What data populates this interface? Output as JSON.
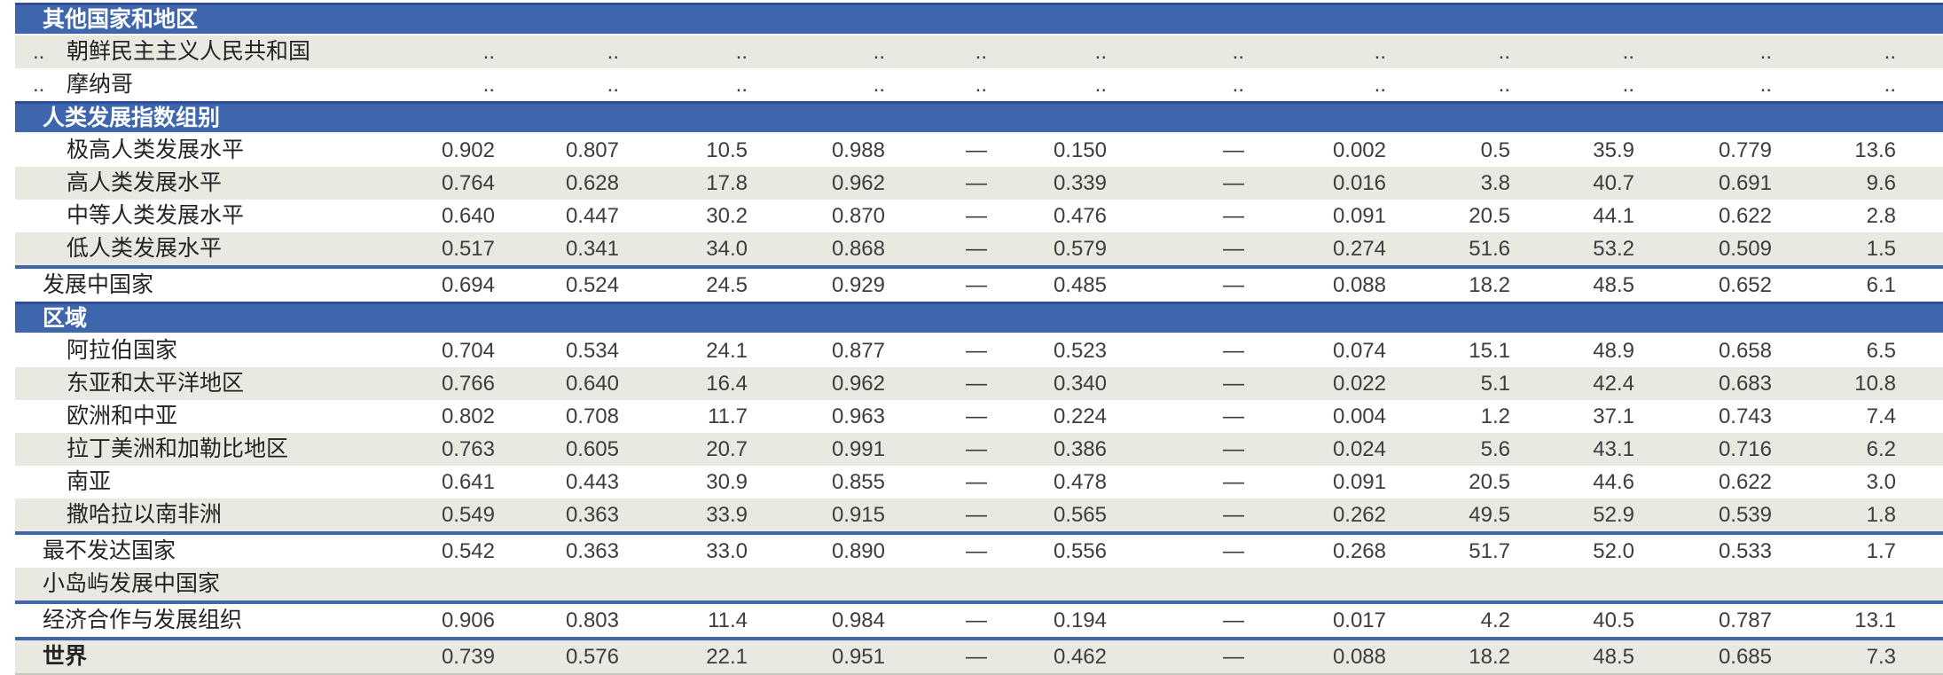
{
  "table": {
    "rows": [
      {
        "type": "band",
        "label": "其他国家和地区"
      },
      {
        "type": "data",
        "indent": "member",
        "shaded": true,
        "rank": "..",
        "label": "朝鲜民主主义人民共和国",
        "values": [
          "..",
          "..",
          "..",
          "..",
          "..",
          "..",
          "..",
          "..",
          "..",
          "..",
          "..",
          ".."
        ]
      },
      {
        "type": "data",
        "indent": "member",
        "shaded": false,
        "rank": "..",
        "label": "摩纳哥",
        "values": [
          "..",
          "..",
          "..",
          "..",
          "..",
          "..",
          "..",
          "..",
          "..",
          "..",
          "..",
          ".."
        ]
      },
      {
        "type": "band",
        "label": "人类发展指数组别"
      },
      {
        "type": "data",
        "indent": "member",
        "shaded": false,
        "label": "极高人类发展水平",
        "values": [
          "0.902",
          "0.807",
          "10.5",
          "0.988",
          "—",
          "0.150",
          "—",
          "0.002",
          "0.5",
          "35.9",
          "0.779",
          "13.6"
        ]
      },
      {
        "type": "data",
        "indent": "member",
        "shaded": true,
        "label": "高人类发展水平",
        "values": [
          "0.764",
          "0.628",
          "17.8",
          "0.962",
          "—",
          "0.339",
          "—",
          "0.016",
          "3.8",
          "40.7",
          "0.691",
          "9.6"
        ]
      },
      {
        "type": "data",
        "indent": "member",
        "shaded": false,
        "label": "中等人类发展水平",
        "values": [
          "0.640",
          "0.447",
          "30.2",
          "0.870",
          "—",
          "0.476",
          "—",
          "0.091",
          "20.5",
          "44.1",
          "0.622",
          "2.8"
        ]
      },
      {
        "type": "data",
        "indent": "member",
        "shaded": true,
        "label": "低人类发展水平",
        "values": [
          "0.517",
          "0.341",
          "34.0",
          "0.868",
          "—",
          "0.579",
          "—",
          "0.274",
          "51.6",
          "53.2",
          "0.509",
          "1.5"
        ]
      },
      {
        "type": "data",
        "indent": "aggregate",
        "shaded": false,
        "rule_above": true,
        "label": "发展中国家",
        "values": [
          "0.694",
          "0.524",
          "24.5",
          "0.929",
          "—",
          "0.485",
          "—",
          "0.088",
          "18.2",
          "48.5",
          "0.652",
          "6.1"
        ]
      },
      {
        "type": "band",
        "label": "区域"
      },
      {
        "type": "data",
        "indent": "member",
        "shaded": false,
        "label": "阿拉伯国家",
        "values": [
          "0.704",
          "0.534",
          "24.1",
          "0.877",
          "—",
          "0.523",
          "—",
          "0.074",
          "15.1",
          "48.9",
          "0.658",
          "6.5"
        ]
      },
      {
        "type": "data",
        "indent": "member",
        "shaded": true,
        "label": "东亚和太平洋地区",
        "values": [
          "0.766",
          "0.640",
          "16.4",
          "0.962",
          "—",
          "0.340",
          "—",
          "0.022",
          "5.1",
          "42.4",
          "0.683",
          "10.8"
        ]
      },
      {
        "type": "data",
        "indent": "member",
        "shaded": false,
        "label": "欧洲和中亚",
        "values": [
          "0.802",
          "0.708",
          "11.7",
          "0.963",
          "—",
          "0.224",
          "—",
          "0.004",
          "1.2",
          "37.1",
          "0.743",
          "7.4"
        ]
      },
      {
        "type": "data",
        "indent": "member",
        "shaded": true,
        "label": "拉丁美洲和加勒比地区",
        "values": [
          "0.763",
          "0.605",
          "20.7",
          "0.991",
          "—",
          "0.386",
          "—",
          "0.024",
          "5.6",
          "43.1",
          "0.716",
          "6.2"
        ]
      },
      {
        "type": "data",
        "indent": "member",
        "shaded": false,
        "label": "南亚",
        "values": [
          "0.641",
          "0.443",
          "30.9",
          "0.855",
          "—",
          "0.478",
          "—",
          "0.091",
          "20.5",
          "44.6",
          "0.622",
          "3.0"
        ]
      },
      {
        "type": "data",
        "indent": "member",
        "shaded": true,
        "label": "撒哈拉以南非洲",
        "values": [
          "0.549",
          "0.363",
          "33.9",
          "0.915",
          "—",
          "0.565",
          "—",
          "0.262",
          "49.5",
          "52.9",
          "0.539",
          "1.8"
        ]
      },
      {
        "type": "data",
        "indent": "aggregate",
        "shaded": false,
        "rule_above": true,
        "label": "最不发达国家",
        "values": [
          "0.542",
          "0.363",
          "33.0",
          "0.890",
          "—",
          "0.556",
          "—",
          "0.268",
          "51.7",
          "52.0",
          "0.533",
          "1.7"
        ]
      },
      {
        "type": "data",
        "indent": "aggregate",
        "shaded": true,
        "label": "小岛屿发展中国家",
        "values": [
          "",
          "",
          "",
          "",
          "",
          "",
          "",
          "",
          "",
          "",
          "",
          ""
        ]
      },
      {
        "type": "data",
        "indent": "aggregate",
        "shaded": false,
        "rule_above": true,
        "label": "经济合作与发展组织",
        "values": [
          "0.906",
          "0.803",
          "11.4",
          "0.984",
          "—",
          "0.194",
          "—",
          "0.017",
          "4.2",
          "40.5",
          "0.787",
          "13.1"
        ]
      },
      {
        "type": "data",
        "indent": "aggregate",
        "shaded": true,
        "rule_above": true,
        "bold": true,
        "label": "世界",
        "values": [
          "0.739",
          "0.576",
          "22.1",
          "0.951",
          "—",
          "0.462",
          "—",
          "0.088",
          "18.2",
          "48.5",
          "0.685",
          "7.3"
        ]
      }
    ]
  },
  "colors": {
    "band_blue": "#3e66ad",
    "band_top_edge": "#2e4f97",
    "stripe_gray": "#e9e8e1",
    "rule_blue": "#3e66ad",
    "text": "#232323"
  }
}
